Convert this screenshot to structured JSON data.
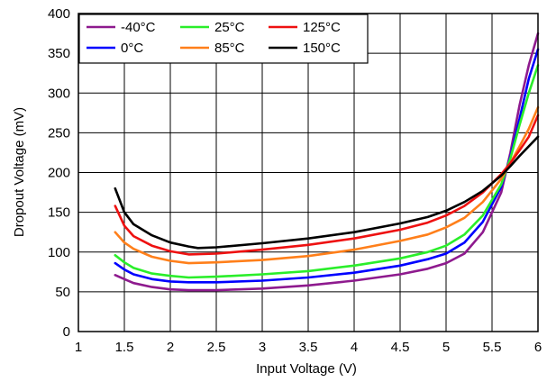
{
  "chart_data": {
    "type": "line",
    "xlabel": "Input Voltage (V)",
    "ylabel": "Dropout Voltage (mV)",
    "xlim": [
      1,
      6
    ],
    "ylim": [
      0,
      400
    ],
    "x_ticks": [
      "1",
      "1.5",
      "2",
      "2.5",
      "3",
      "3.5",
      "4",
      "4.5",
      "5",
      "5.5",
      "6"
    ],
    "y_ticks": [
      "0",
      "50",
      "100",
      "150",
      "200",
      "250",
      "300",
      "350",
      "400"
    ],
    "grid": true,
    "legend_position": "top-left",
    "series": [
      {
        "name": "-40°C",
        "color": "#8e1a8e",
        "points": [
          [
            1.4,
            71
          ],
          [
            1.5,
            66
          ],
          [
            1.6,
            61
          ],
          [
            1.8,
            56
          ],
          [
            2.0,
            53
          ],
          [
            2.2,
            52
          ],
          [
            2.5,
            52
          ],
          [
            3.0,
            54
          ],
          [
            3.5,
            58
          ],
          [
            4.0,
            64
          ],
          [
            4.5,
            72
          ],
          [
            4.8,
            79
          ],
          [
            5.0,
            86
          ],
          [
            5.2,
            98
          ],
          [
            5.4,
            125
          ],
          [
            5.6,
            175
          ],
          [
            5.7,
            225
          ],
          [
            5.8,
            285
          ],
          [
            5.9,
            335
          ],
          [
            6.0,
            375
          ]
        ]
      },
      {
        "name": "0°C",
        "color": "#0000ff",
        "points": [
          [
            1.4,
            86
          ],
          [
            1.5,
            78
          ],
          [
            1.6,
            72
          ],
          [
            1.8,
            66
          ],
          [
            2.0,
            63
          ],
          [
            2.2,
            62
          ],
          [
            2.5,
            62
          ],
          [
            3.0,
            64
          ],
          [
            3.5,
            68
          ],
          [
            4.0,
            74
          ],
          [
            4.5,
            83
          ],
          [
            4.8,
            91
          ],
          [
            5.0,
            98
          ],
          [
            5.2,
            112
          ],
          [
            5.4,
            138
          ],
          [
            5.6,
            182
          ],
          [
            5.7,
            220
          ],
          [
            5.8,
            268
          ],
          [
            5.9,
            318
          ],
          [
            6.0,
            355
          ]
        ]
      },
      {
        "name": "25°C",
        "color": "#2aee2a",
        "points": [
          [
            1.4,
            96
          ],
          [
            1.5,
            87
          ],
          [
            1.6,
            80
          ],
          [
            1.8,
            73
          ],
          [
            2.0,
            70
          ],
          [
            2.2,
            68
          ],
          [
            2.5,
            69
          ],
          [
            3.0,
            72
          ],
          [
            3.5,
            76
          ],
          [
            4.0,
            83
          ],
          [
            4.5,
            92
          ],
          [
            4.8,
            100
          ],
          [
            5.0,
            108
          ],
          [
            5.2,
            122
          ],
          [
            5.4,
            146
          ],
          [
            5.6,
            185
          ],
          [
            5.7,
            218
          ],
          [
            5.8,
            260
          ],
          [
            5.9,
            300
          ],
          [
            6.0,
            335
          ]
        ]
      },
      {
        "name": "85°C",
        "color": "#ff7f1a",
        "points": [
          [
            1.4,
            125
          ],
          [
            1.5,
            112
          ],
          [
            1.6,
            104
          ],
          [
            1.8,
            94
          ],
          [
            2.0,
            89
          ],
          [
            2.2,
            86
          ],
          [
            2.5,
            87
          ],
          [
            3.0,
            90
          ],
          [
            3.5,
            95
          ],
          [
            4.0,
            103
          ],
          [
            4.5,
            114
          ],
          [
            4.8,
            122
          ],
          [
            5.0,
            131
          ],
          [
            5.2,
            143
          ],
          [
            5.4,
            163
          ],
          [
            5.6,
            192
          ],
          [
            5.7,
            212
          ],
          [
            5.8,
            233
          ],
          [
            5.9,
            255
          ],
          [
            6.0,
            282
          ]
        ]
      },
      {
        "name": "125°C",
        "color": "#ee1111",
        "points": [
          [
            1.4,
            158
          ],
          [
            1.5,
            133
          ],
          [
            1.6,
            120
          ],
          [
            1.8,
            108
          ],
          [
            2.0,
            101
          ],
          [
            2.2,
            97
          ],
          [
            2.5,
            98
          ],
          [
            3.0,
            103
          ],
          [
            3.5,
            109
          ],
          [
            4.0,
            117
          ],
          [
            4.5,
            128
          ],
          [
            4.8,
            137
          ],
          [
            5.0,
            146
          ],
          [
            5.2,
            158
          ],
          [
            5.4,
            175
          ],
          [
            5.6,
            198
          ],
          [
            5.7,
            212
          ],
          [
            5.8,
            228
          ],
          [
            5.9,
            245
          ],
          [
            6.0,
            272
          ]
        ]
      },
      {
        "name": "150°C",
        "color": "#000000",
        "points": [
          [
            1.4,
            180
          ],
          [
            1.5,
            150
          ],
          [
            1.6,
            135
          ],
          [
            1.8,
            121
          ],
          [
            2.0,
            112
          ],
          [
            2.2,
            107
          ],
          [
            2.3,
            105
          ],
          [
            2.5,
            106
          ],
          [
            3.0,
            111
          ],
          [
            3.5,
            117
          ],
          [
            4.0,
            125
          ],
          [
            4.5,
            136
          ],
          [
            4.8,
            144
          ],
          [
            5.0,
            152
          ],
          [
            5.2,
            163
          ],
          [
            5.4,
            177
          ],
          [
            5.6,
            196
          ],
          [
            5.7,
            208
          ],
          [
            5.8,
            221
          ],
          [
            5.9,
            233
          ],
          [
            6.0,
            245
          ]
        ]
      }
    ]
  }
}
